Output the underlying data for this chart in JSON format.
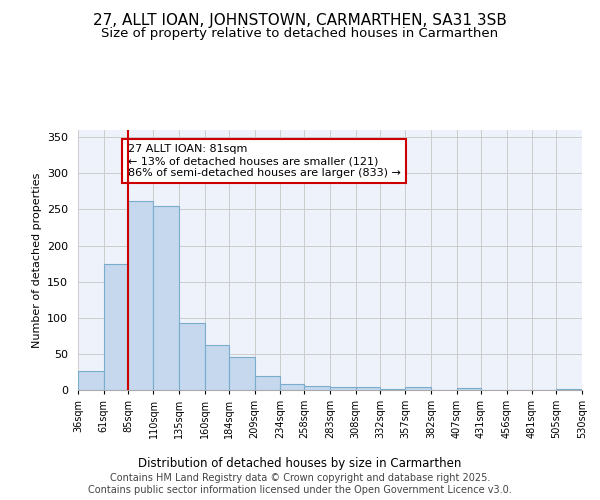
{
  "title_line1": "27, ALLT IOAN, JOHNSTOWN, CARMARTHEN, SA31 3SB",
  "title_line2": "Size of property relative to detached houses in Carmarthen",
  "xlabel": "Distribution of detached houses by size in Carmarthen",
  "ylabel": "Number of detached properties",
  "bar_color": "#c5d8ed",
  "bar_edge_color": "#7aaccc",
  "grid_color": "#cccccc",
  "background_color": "#eef2fb",
  "annotation_box_text": "27 ALLT IOAN: 81sqm\n← 13% of detached houses are smaller (121)\n86% of semi-detached houses are larger (833) →",
  "annotation_box_color": "#ffffff",
  "annotation_box_edge": "#cc0000",
  "vline_color": "#cc0000",
  "vline_x": 85,
  "footer_text": "Contains HM Land Registry data © Crown copyright and database right 2025.\nContains public sector information licensed under the Open Government Licence v3.0.",
  "bin_edges": [
    36,
    61,
    85,
    110,
    135,
    160,
    184,
    209,
    234,
    258,
    283,
    308,
    332,
    357,
    382,
    407,
    431,
    456,
    481,
    505,
    530
  ],
  "bar_heights": [
    26,
    175,
    262,
    255,
    93,
    63,
    46,
    19,
    9,
    6,
    4,
    4,
    1,
    4,
    0,
    3,
    0,
    0,
    0,
    1
  ],
  "ylim": [
    0,
    360
  ],
  "yticks": [
    0,
    50,
    100,
    150,
    200,
    250,
    300,
    350
  ],
  "title_fontsize": 11,
  "subtitle_fontsize": 9.5,
  "footer_fontsize": 7,
  "annotation_fontsize": 8,
  "figsize": [
    6.0,
    5.0
  ],
  "dpi": 100
}
